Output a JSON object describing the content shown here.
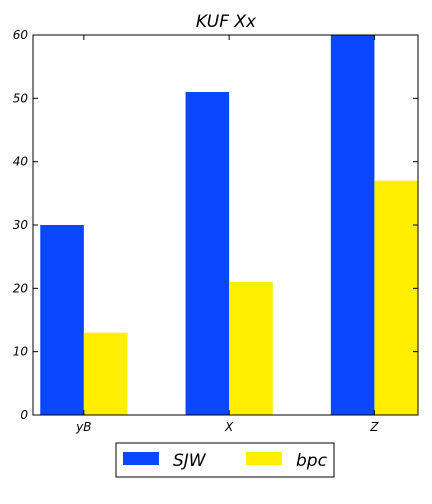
{
  "chart_data": {
    "type": "bar",
    "title": "KUF Xx",
    "xlabel": "",
    "ylabel": "",
    "categories": [
      "yB",
      "X",
      "Z"
    ],
    "series": [
      {
        "name": "SJW",
        "color": "#0a47ff",
        "values": [
          30,
          51,
          60
        ]
      },
      {
        "name": "bpc",
        "color": "#ffee00",
        "values": [
          13,
          21,
          37
        ]
      }
    ],
    "ylim": [
      0,
      60
    ],
    "yticks": [
      0,
      10,
      20,
      30,
      40,
      50,
      60
    ],
    "grid": false,
    "legend_position": "bottom-center"
  }
}
